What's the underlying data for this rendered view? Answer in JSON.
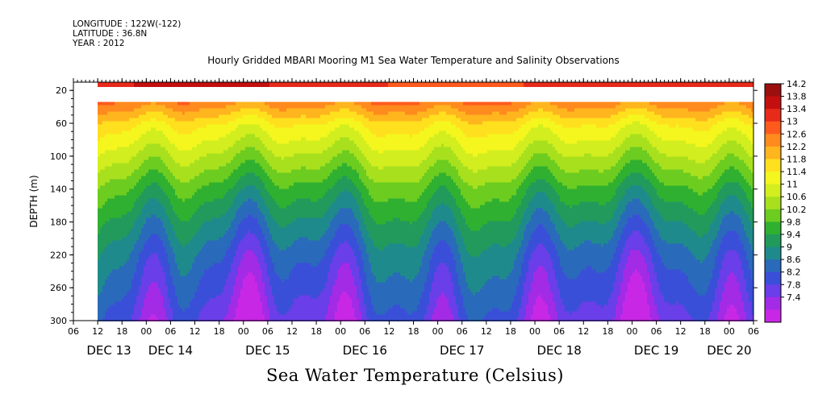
{
  "header": {
    "longitude": "LONGITUDE : 122W(-122)",
    "latitude": "LATITUDE : 36.8N",
    "year": "YEAR : 2012"
  },
  "chart_data": {
    "type": "heatmap",
    "title": "Hourly Gridded MBARI Mooring M1 Sea Water Temperature and Salinity Observations",
    "xlabel": "Sea Water Temperature (Celsius)",
    "ylabel": "DEPTH (m)",
    "xlim_hours": [
      0,
      168
    ],
    "x_hour_ticks": [
      "06",
      "12",
      "18",
      "00",
      "06",
      "12",
      "18",
      "00",
      "06",
      "12",
      "18",
      "00",
      "06",
      "12",
      "18",
      "00",
      "06",
      "12",
      "18",
      "00",
      "06",
      "12",
      "18",
      "00",
      "06",
      "12",
      "18",
      "00",
      "06"
    ],
    "x_day_labels": [
      "DEC 13",
      "DEC 14",
      "DEC 15",
      "DEC 16",
      "DEC 17",
      "DEC 18",
      "DEC 19",
      "DEC 20"
    ],
    "ylim": [
      300,
      10
    ],
    "y_ticks": [
      20,
      60,
      100,
      140,
      180,
      220,
      260,
      300
    ],
    "colorbar": {
      "levels": [
        7.4,
        7.8,
        8.2,
        8.6,
        9,
        9.4,
        9.8,
        10.2,
        10.6,
        11,
        11.4,
        11.8,
        12.2,
        12.6,
        13,
        13.4,
        13.8,
        14.2
      ],
      "labels": [
        "14.2",
        "13.8",
        "13.4",
        "13",
        "12.6",
        "12.2",
        "11.8",
        "11.4",
        "11",
        "10.6",
        "10.2",
        "9.8",
        "9.4",
        "9",
        "8.6",
        "8.2",
        "7.8",
        "7.4"
      ],
      "colors": [
        "#9b0f0f",
        "#c40f0f",
        "#e82a1a",
        "#ff5a1e",
        "#ff8a1e",
        "#ffb51e",
        "#ffe01e",
        "#f4f61e",
        "#d2ee1e",
        "#a8e01e",
        "#6ccc20",
        "#30b030",
        "#229a5c",
        "#1f8a8c",
        "#2a6aba",
        "#3a4fd8",
        "#6a3ee8",
        "#a32be6",
        "#c828e6"
      ]
    },
    "data_description_profile_depths_m": [
      13,
      40,
      60,
      100,
      140,
      180,
      220,
      260,
      300
    ],
    "mean_profile_celsius": [
      13.6,
      12.6,
      11.8,
      10.9,
      10.0,
      9.3,
      8.7,
      8.3,
      7.9
    ],
    "gap_start_hour": 0,
    "data_start_hour": 6,
    "near_surface_depth_m": 13,
    "gap_depth_range_m": [
      16,
      34
    ]
  }
}
